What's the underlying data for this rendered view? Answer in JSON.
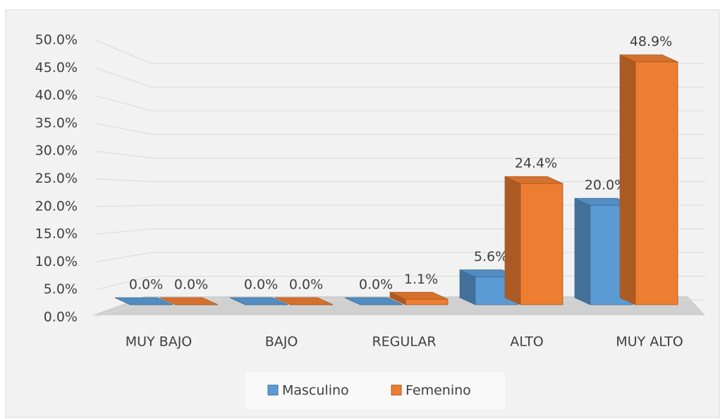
{
  "chart_data": {
    "type": "bar3d",
    "categories": [
      "MUY BAJO",
      "BAJO",
      "REGULAR",
      "ALTO",
      "MUY ALTO"
    ],
    "series": [
      {
        "name": "Masculino",
        "color": "#5b9bd5",
        "values": [
          0,
          0,
          0,
          5.6,
          20.0
        ],
        "value_labels": [
          "0.0%",
          "0.0%",
          "0.0%",
          "5.6%",
          "20.0%"
        ]
      },
      {
        "name": "Femenino",
        "color": "#ed7d31",
        "values": [
          0,
          0,
          1.1,
          24.4,
          48.9
        ],
        "value_labels": [
          "0.0%",
          "0.0%",
          "1.1%",
          "24.4%",
          "48.9%"
        ]
      }
    ],
    "ylim": [
      0,
      50
    ],
    "yticks": [
      {
        "value": 0,
        "label": "0.0%"
      },
      {
        "value": 5,
        "label": "5.0%"
      },
      {
        "value": 10,
        "label": "10.0%"
      },
      {
        "value": 15,
        "label": "15.0%"
      },
      {
        "value": 20,
        "label": "20.0%"
      },
      {
        "value": 25,
        "label": "25.0%"
      },
      {
        "value": 30,
        "label": "30.0%"
      },
      {
        "value": 35,
        "label": "35.0%"
      },
      {
        "value": 40,
        "label": "40.0%"
      },
      {
        "value": 45,
        "label": "45.0%"
      },
      {
        "value": 50,
        "label": "50.0%"
      }
    ],
    "grid": true,
    "legend": "bottom"
  }
}
